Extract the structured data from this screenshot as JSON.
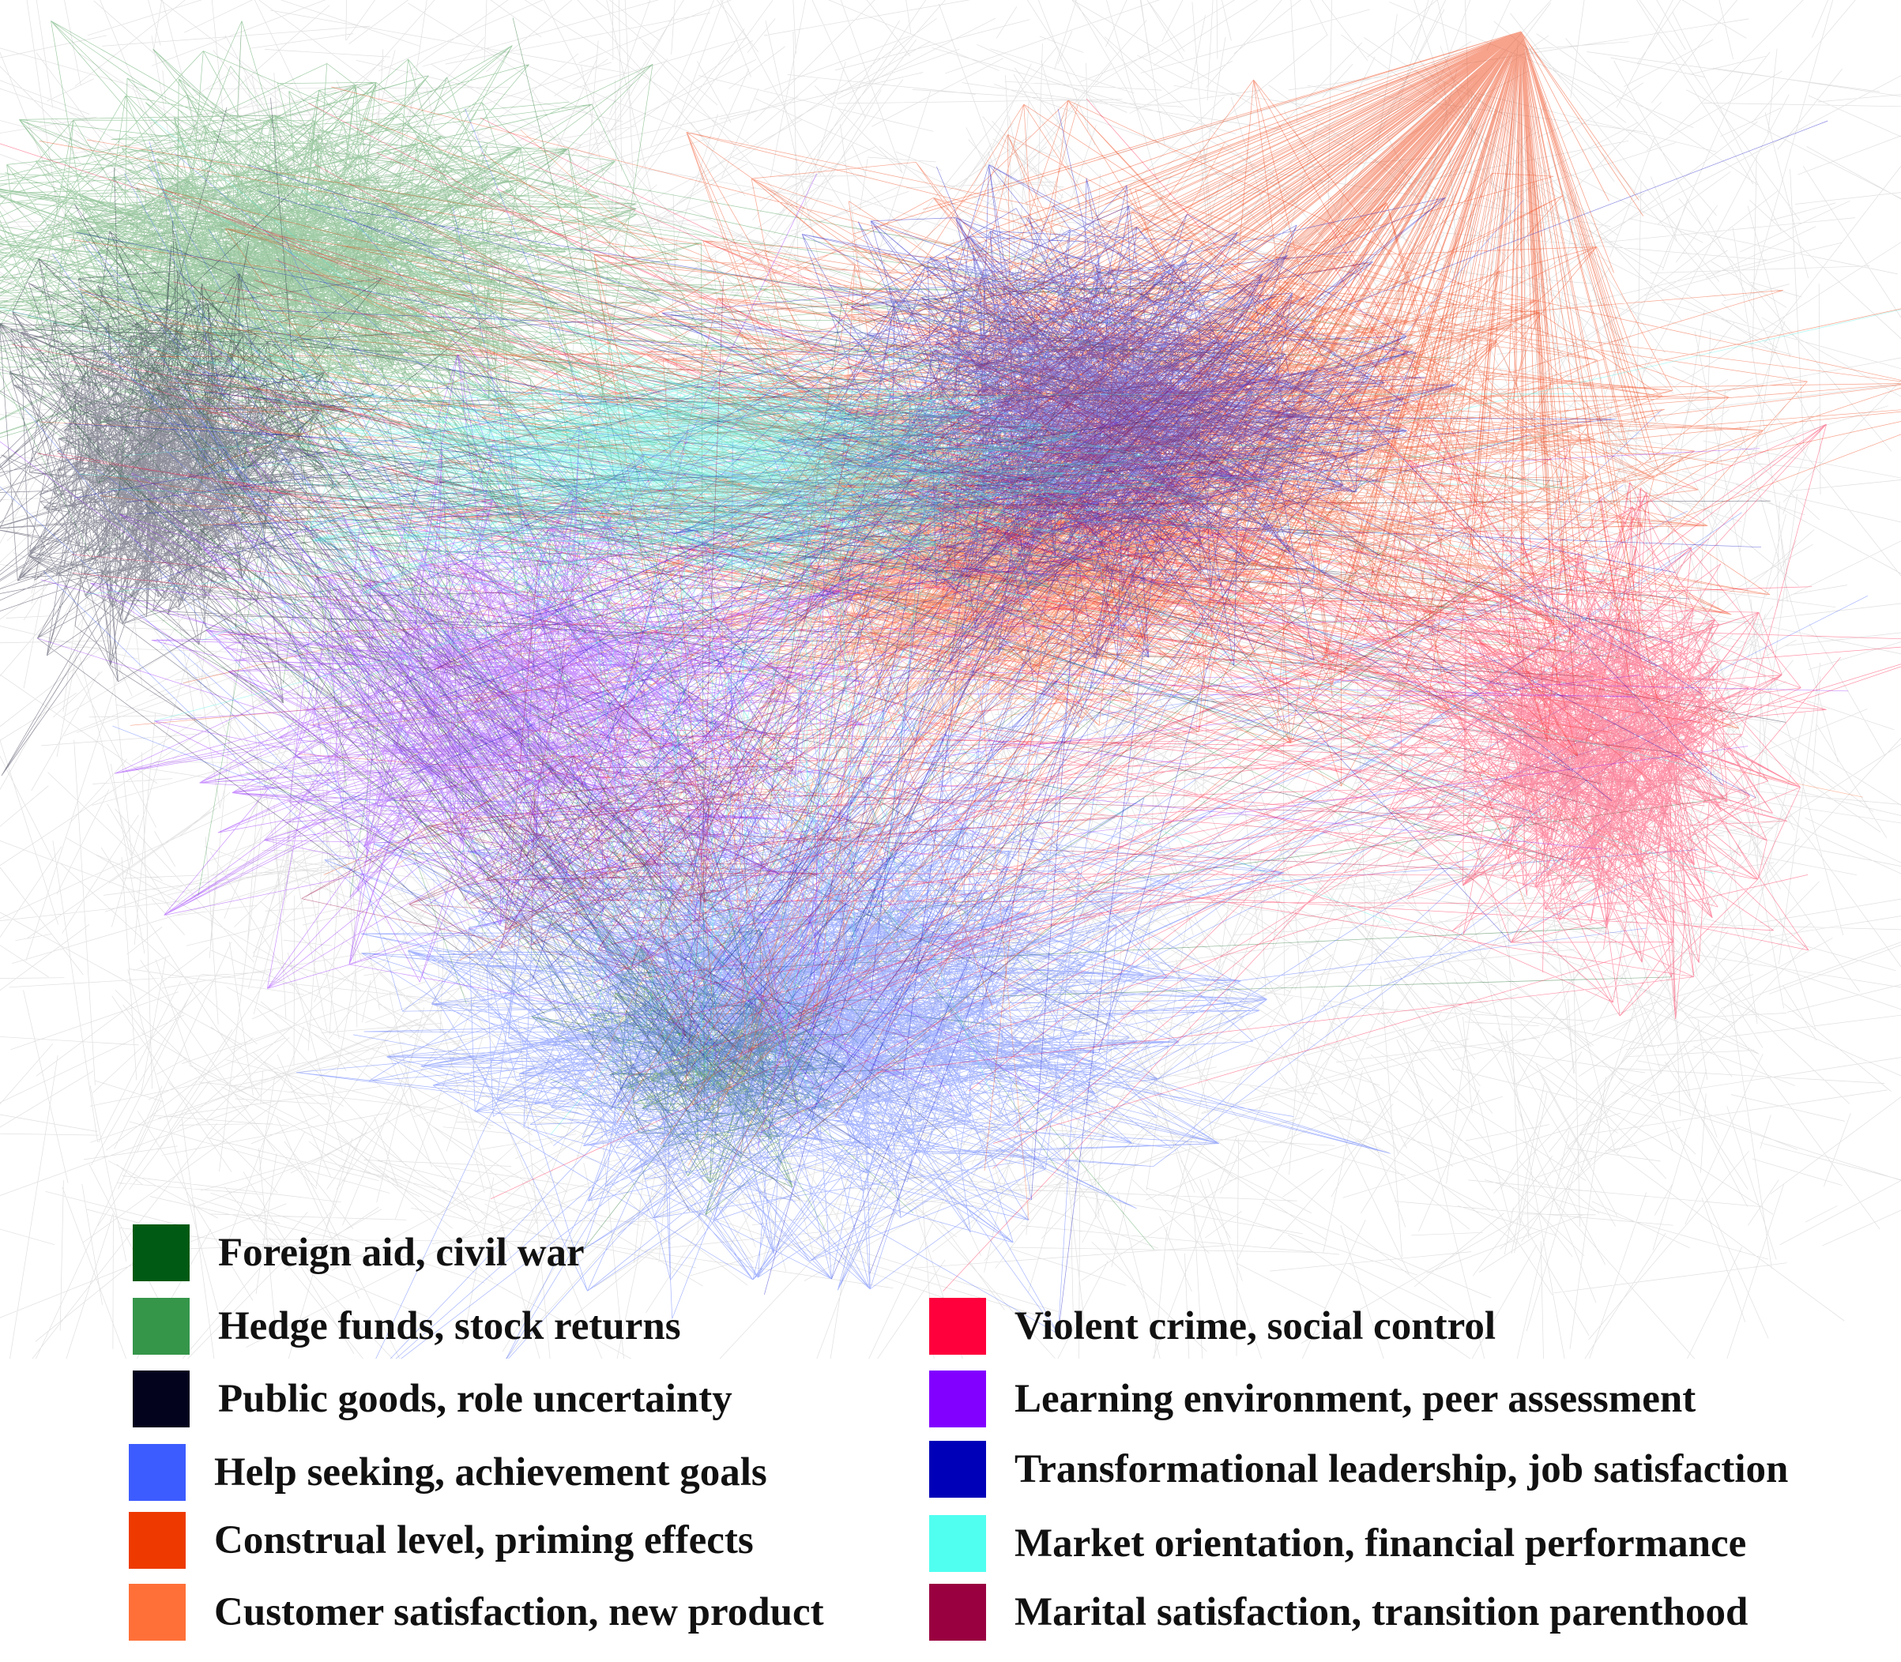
{
  "network": {
    "background_links": "#c4c4c4",
    "clusters": [
      {
        "id": "foreign-aid",
        "color": "#005a14"
      },
      {
        "id": "hedge-funds",
        "color": "#2d8f3a"
      },
      {
        "id": "public-goods",
        "color": "#0a0a28"
      },
      {
        "id": "help-seeking",
        "color": "#3a5aff"
      },
      {
        "id": "construal-level",
        "color": "#ee3300"
      },
      {
        "id": "customer-satisfaction",
        "color": "#ff6a30"
      },
      {
        "id": "violent-crime",
        "color": "#ff0a3c"
      },
      {
        "id": "learning-environment",
        "color": "#8a10ff"
      },
      {
        "id": "transformational-leadership",
        "color": "#0000c0"
      },
      {
        "id": "market-orientation",
        "color": "#40f0e0"
      },
      {
        "id": "marital-satisfaction",
        "color": "#96003e"
      }
    ]
  },
  "legend": {
    "entries": [
      {
        "key": "foreign-aid",
        "label": "Foreign aid, civil war",
        "color": "#005a14"
      },
      {
        "key": "hedge-funds",
        "label": "Hedge funds, stock returns",
        "color": "#35964a"
      },
      {
        "key": "public-goods",
        "label": "Public goods, role uncertainty",
        "color": "#03031e"
      },
      {
        "key": "help-seeking",
        "label": "Help seeking, achievement goals",
        "color": "#3d5cff"
      },
      {
        "key": "construal-level",
        "label": "Construal level, priming effects",
        "color": "#ee3a00"
      },
      {
        "key": "customer-satisfaction",
        "label": "Customer satisfaction, new product",
        "color": "#ff7038"
      },
      {
        "key": "violent-crime",
        "label": "Violent crime, social control",
        "color": "#ff003c"
      },
      {
        "key": "learning-environment",
        "label": "Learning environment, peer assessment",
        "color": "#8200ff"
      },
      {
        "key": "transformational-leadership",
        "label": "Transformational leadership, job satisfaction",
        "color": "#0000b8"
      },
      {
        "key": "market-orientation",
        "label": "Market orientation, financial performance",
        "color": "#50fff0"
      },
      {
        "key": "marital-satisfaction",
        "label": "Marital satisfaction, transition parenthood",
        "color": "#990040"
      }
    ]
  }
}
